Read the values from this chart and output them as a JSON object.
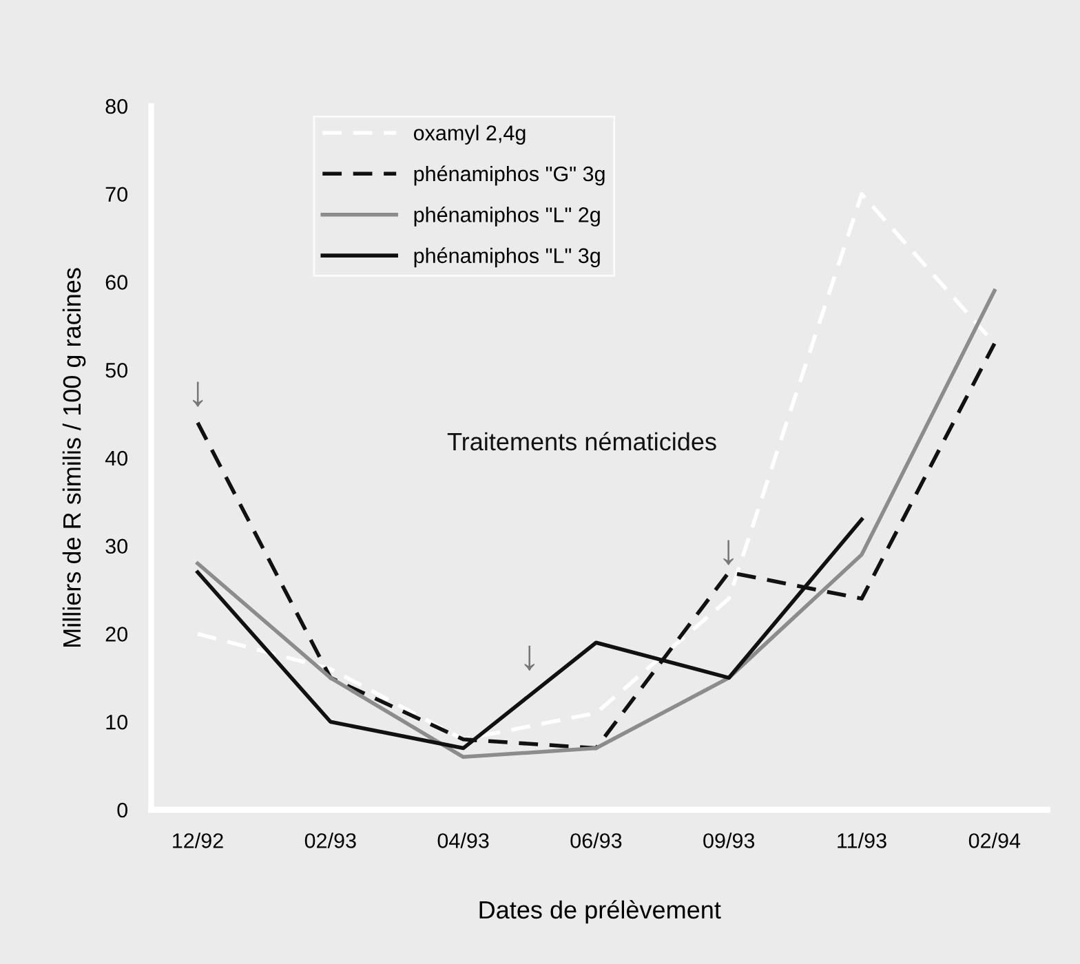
{
  "chart_data": {
    "type": "line",
    "xlabel": "Dates de prélèvement",
    "ylabel": "Milliers de R similis / 100 g racines",
    "categories": [
      "12/92",
      "02/93",
      "04/93",
      "06/93",
      "09/93",
      "11/93",
      "02/94"
    ],
    "series": [
      {
        "name": "oxamyl 2,4g",
        "color": "#ffffff",
        "line_style": "dashed",
        "values": [
          20,
          16,
          8,
          11,
          24,
          70,
          53
        ]
      },
      {
        "name": "phénamiphos \"G\" 3g",
        "color": "#111111",
        "line_style": "dashed",
        "values": [
          44,
          15,
          8,
          7,
          27,
          24,
          53
        ]
      },
      {
        "name": "phénamiphos \"L\" 2g",
        "color": "#8c8c8c",
        "line_style": "solid",
        "values": [
          28,
          15,
          6,
          7,
          15,
          29,
          59
        ]
      },
      {
        "name": "phénamiphos \"L\" 3g",
        "color": "#111111",
        "line_style": "solid",
        "values": [
          27,
          10,
          7,
          19,
          15,
          33,
          null
        ]
      }
    ],
    "ylim": [
      0,
      80
    ],
    "yticks": [
      0,
      10,
      20,
      30,
      40,
      50,
      60,
      70,
      80
    ],
    "legend": "top left",
    "grid": false,
    "marker": "none",
    "annotations": [
      "Traitements nématicides",
      "↓",
      "↓",
      "↓"
    ]
  }
}
